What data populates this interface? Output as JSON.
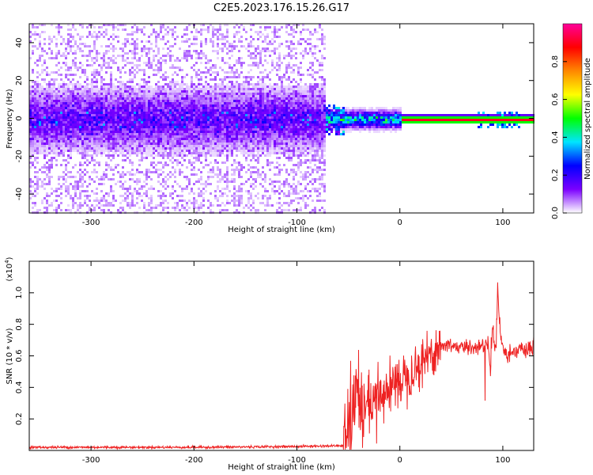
{
  "figure_title": "C2E5.2023.176.15.26.G17",
  "colors": {
    "signal": "#ff0000",
    "spectrogram_noise": "#7b00ff",
    "line_noise": "#ee2222"
  },
  "chart_data": [
    {
      "type": "heatmap",
      "title": "C2E5.2023.176.15.26.G17",
      "xlabel": "Height of straight line (km)",
      "ylabel": "Frequency (Hz)",
      "xlim": [
        -360,
        130
      ],
      "ylim": [
        -50,
        50
      ],
      "x_ticks": [
        -300,
        -200,
        -100,
        0,
        100
      ],
      "x_tick_labels": [
        "-300",
        "-200",
        "-100",
        "0",
        "100"
      ],
      "y_ticks": [
        -40,
        -20,
        0,
        20,
        40
      ],
      "y_tick_labels": [
        "-40",
        "-20",
        "0",
        "20",
        "40"
      ],
      "colorbar": {
        "label": "Normalized spectral amplitude",
        "range": [
          0,
          1
        ],
        "ticks": [
          0.0,
          0.2,
          0.4,
          0.6,
          0.8
        ],
        "tick_labels": [
          "0.0",
          "0.2",
          "0.4",
          "0.6",
          "0.8"
        ],
        "colormap": [
          "#ffffff",
          "#7b00ff",
          "#0000ff",
          "#00e5ff",
          "#00ff00",
          "#ffff00",
          "#ff8800",
          "#ff0000",
          "#ff0099"
        ]
      },
      "regions": [
        {
          "description_x_range": [
            -360,
            -72
          ],
          "noise_band_hz": [
            -50,
            50
          ],
          "dense_band_hz": [
            -10,
            10
          ],
          "amplitude": 0.15
        },
        {
          "description_x_range": [
            -72,
            0
          ],
          "dense_band_hz": [
            -3,
            3
          ],
          "amplitude": 0.45
        },
        {
          "description_x_range": [
            0,
            130
          ],
          "dense_band_hz": [
            -1,
            1
          ],
          "amplitude": 0.9
        }
      ]
    },
    {
      "type": "line",
      "xlabel": "Height of straight line (km)",
      "ylabel": "SNR (10 * v/v)",
      "yscale_label": "(x10",
      "yscale_exp": "4",
      "xlim": [
        -360,
        130
      ],
      "ylim": [
        0,
        1.2
      ],
      "x_ticks": [
        -300,
        -200,
        -100,
        0,
        100
      ],
      "x_tick_labels": [
        "-300",
        "-200",
        "-100",
        "0",
        "100"
      ],
      "y_ticks": [
        0.2,
        0.4,
        0.6,
        0.8,
        1.0
      ],
      "y_tick_labels": [
        "0.2",
        "0.4",
        "0.6",
        "0.8",
        "1.0"
      ],
      "series": [
        {
          "x": [
            -360,
            -300,
            -200,
            -100,
            -55,
            -50,
            -45,
            -42,
            -40,
            -35,
            -30,
            -25,
            -20,
            -10,
            0,
            10,
            20,
            30,
            40,
            50,
            60,
            70,
            80,
            85,
            88,
            90,
            93,
            95,
            97,
            100,
            105,
            110,
            120,
            130
          ],
          "y": [
            0.02,
            0.02,
            0.02,
            0.025,
            0.03,
            0.1,
            0.25,
            0.45,
            0.3,
            0.2,
            0.3,
            0.25,
            0.35,
            0.4,
            0.45,
            0.5,
            0.55,
            0.62,
            0.66,
            0.67,
            0.65,
            0.66,
            0.66,
            0.7,
            0.5,
            0.8,
            0.6,
            1.05,
            0.75,
            0.65,
            0.6,
            0.64,
            0.63,
            0.64
          ]
        }
      ]
    }
  ]
}
